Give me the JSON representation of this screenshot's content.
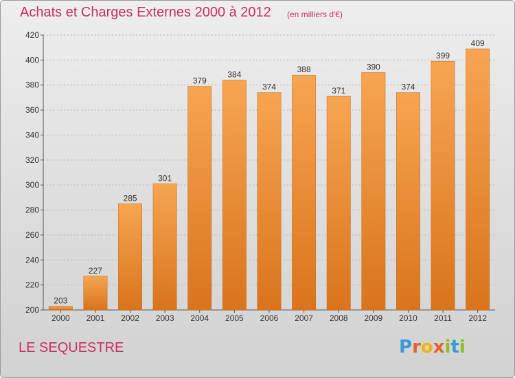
{
  "chart_data": {
    "type": "bar",
    "title": "Achats et Charges Externes 2000 à 2012",
    "subtitle": "(en milliers d'€)",
    "categories": [
      "2000",
      "2001",
      "2002",
      "2003",
      "2004",
      "2005",
      "2006",
      "2007",
      "2008",
      "2009",
      "2010",
      "2011",
      "2012"
    ],
    "values": [
      203,
      227,
      285,
      301,
      379,
      384,
      374,
      388,
      371,
      390,
      374,
      399,
      409
    ],
    "ylim": [
      200,
      420
    ],
    "yticks": [
      200,
      220,
      240,
      260,
      280,
      300,
      320,
      340,
      360,
      380,
      400,
      420
    ],
    "grid": true,
    "bar_color": "#f08c2c"
  },
  "place_name": "LE SEQUESTRE",
  "logo": {
    "letters": [
      "P",
      "r",
      "o",
      "x",
      "i",
      "t",
      "i"
    ],
    "colors": [
      "#3a9ad9",
      "#e2632b",
      "#f0b400",
      "#e2632b",
      "#8cbf26",
      "#3a9ad9",
      "#8cbf26"
    ]
  }
}
